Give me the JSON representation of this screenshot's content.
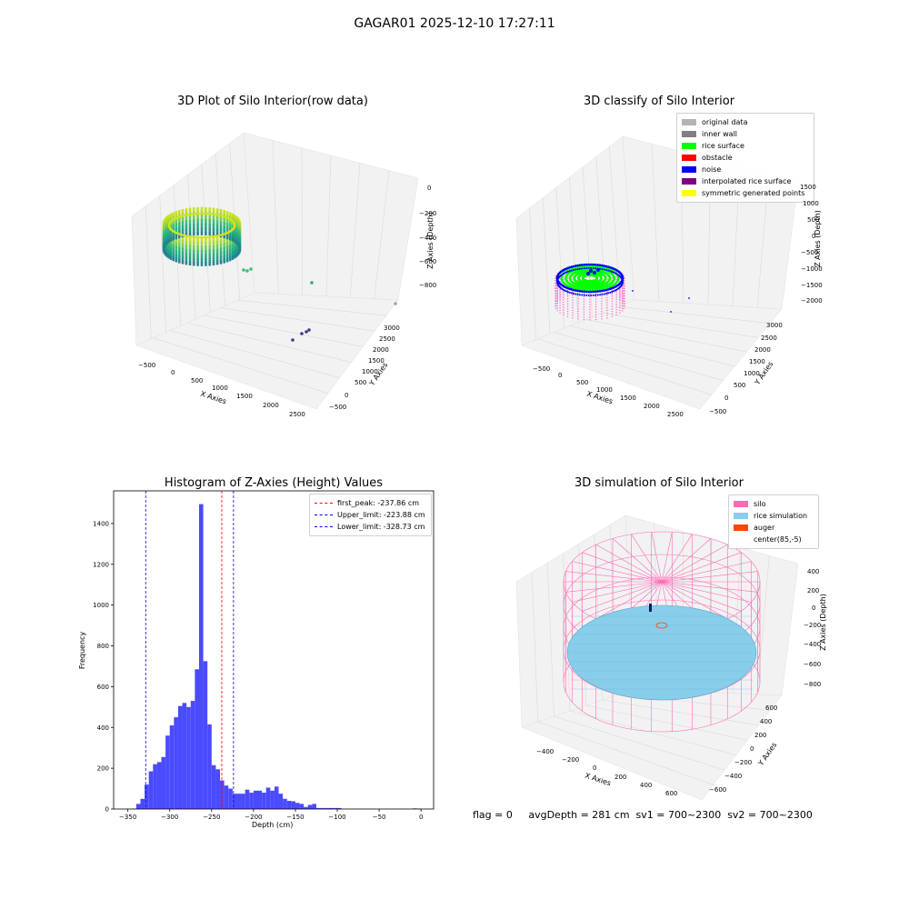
{
  "suptitle": "GAGAR01 2025-12-10 17:27:11",
  "footer": "flag = 0     avgDepth = 281 cm  sv1 = 700~2300  sv2 = 700~2300",
  "chart_data": [
    {
      "type": "scatter3d",
      "title": "3D Plot of Silo Interior(row data)",
      "xlabel": "X Axies",
      "ylabel": "Y Axies",
      "zlabel": "Z Axies (Depth)",
      "xticks": [
        "−500",
        "0",
        "500",
        "1000",
        "1500",
        "2000",
        "2500"
      ],
      "yticks": [
        "−500",
        "0",
        "500",
        "1000",
        "1500",
        "2000",
        "2500",
        "3000"
      ],
      "zticks": [
        "−800",
        "−600",
        "−400",
        "−200",
        "0"
      ],
      "colormap": "viridis"
    },
    {
      "type": "scatter3d",
      "title": "3D classify of Silo Interior",
      "xlabel": "X Axies",
      "ylabel": "Y Axies",
      "zlabel": "Z Axies (Depth)",
      "xticks": [
        "−500",
        "0",
        "500",
        "1000",
        "1500",
        "2000",
        "2500"
      ],
      "yticks": [
        "−500",
        "0",
        "500",
        "1000",
        "1500",
        "2000",
        "2500",
        "3000"
      ],
      "zticks": [
        "−2000",
        "−1500",
        "−1000",
        "−500",
        "0",
        "500",
        "1000",
        "1500"
      ],
      "legend": [
        {
          "label": "original data",
          "color": "#b3b3b3"
        },
        {
          "label": "inner wall",
          "color": "#808080"
        },
        {
          "label": "rice surface",
          "color": "#00ff00"
        },
        {
          "label": "obstacle",
          "color": "#ff0000"
        },
        {
          "label": "noise",
          "color": "#0000ff"
        },
        {
          "label": "interpolated rice surface",
          "color": "#800080"
        },
        {
          "label": "symmetric generated points",
          "color": "#ffff00"
        }
      ]
    },
    {
      "type": "bar",
      "title": "Histogram of Z-Axies (Height) Values",
      "xlabel": "Depth (cm)",
      "ylabel": "Frequency",
      "bar_color": "#4a4aff",
      "xlim": [
        -367,
        15
      ],
      "ylim": [
        0,
        1560
      ],
      "xticks": [
        -350,
        -300,
        -250,
        -200,
        -150,
        -100,
        -50,
        0
      ],
      "xtick_labels": [
        "−350",
        "−300",
        "−250",
        "−200",
        "−150",
        "−100",
        "−50",
        "0"
      ],
      "yticks": [
        0,
        200,
        400,
        600,
        800,
        1000,
        1200,
        1400
      ],
      "bin_width": 5,
      "bins_start": [
        -345,
        -340,
        -335,
        -330,
        -325,
        -320,
        -315,
        -310,
        -305,
        -300,
        -295,
        -290,
        -285,
        -280,
        -275,
        -270,
        -265,
        -260,
        -255,
        -250,
        -245,
        -240,
        -235,
        -230,
        -225,
        -220,
        -215,
        -210,
        -205,
        -200,
        -195,
        -190,
        -185,
        -180,
        -175,
        -170,
        -165,
        -160,
        -155,
        -150,
        -145,
        -140,
        -135,
        -130,
        -125,
        -120,
        -115,
        -110,
        -105,
        -100,
        -95,
        -90,
        -85,
        -80,
        -75,
        -70,
        -65,
        -60,
        -55,
        -50,
        -45,
        -40,
        -35,
        -30,
        -25,
        -20,
        -15,
        -10,
        -5
      ],
      "values": [
        2,
        25,
        50,
        120,
        185,
        220,
        230,
        255,
        360,
        410,
        450,
        505,
        520,
        500,
        530,
        685,
        1495,
        725,
        415,
        215,
        195,
        140,
        115,
        100,
        75,
        75,
        75,
        95,
        80,
        90,
        90,
        80,
        105,
        90,
        110,
        75,
        50,
        40,
        38,
        30,
        25,
        10,
        20,
        25,
        5,
        5,
        5,
        5,
        5,
        5,
        0,
        0,
        0,
        0,
        0,
        0,
        0,
        0,
        0,
        0,
        0,
        0,
        0,
        0,
        0,
        0,
        0,
        3,
        2
      ],
      "vlines": [
        {
          "label": "first_peak: -237.86 cm",
          "x": -237.86,
          "color": "#ff0000"
        },
        {
          "label": "Upper_limit: -223.88 cm",
          "x": -223.88,
          "color": "#0000ff"
        },
        {
          "label": "Lower_limit: -328.73 cm",
          "x": -328.73,
          "color": "#0000ff"
        }
      ]
    },
    {
      "type": "surface3d",
      "title": "3D simulation of Silo Interior",
      "xlabel": "X Axies",
      "ylabel": "Y Axies",
      "zlabel": "Z Axies (Depth)",
      "xticks": [
        "−400",
        "−200",
        "0",
        "200",
        "400",
        "600"
      ],
      "yticks": [
        "−600",
        "−400",
        "−200",
        "0",
        "200",
        "400",
        "600"
      ],
      "zticks": [
        "−800",
        "−600",
        "−400",
        "−200",
        "0",
        "200",
        "400"
      ],
      "legend": [
        {
          "label": "silo",
          "color": "#ff69b4"
        },
        {
          "label": "rice simulation",
          "color": "#87ceeb"
        },
        {
          "label": "auger",
          "color": "#ff4500"
        },
        {
          "label": "center(85,-5)",
          "color": ""
        }
      ]
    }
  ]
}
